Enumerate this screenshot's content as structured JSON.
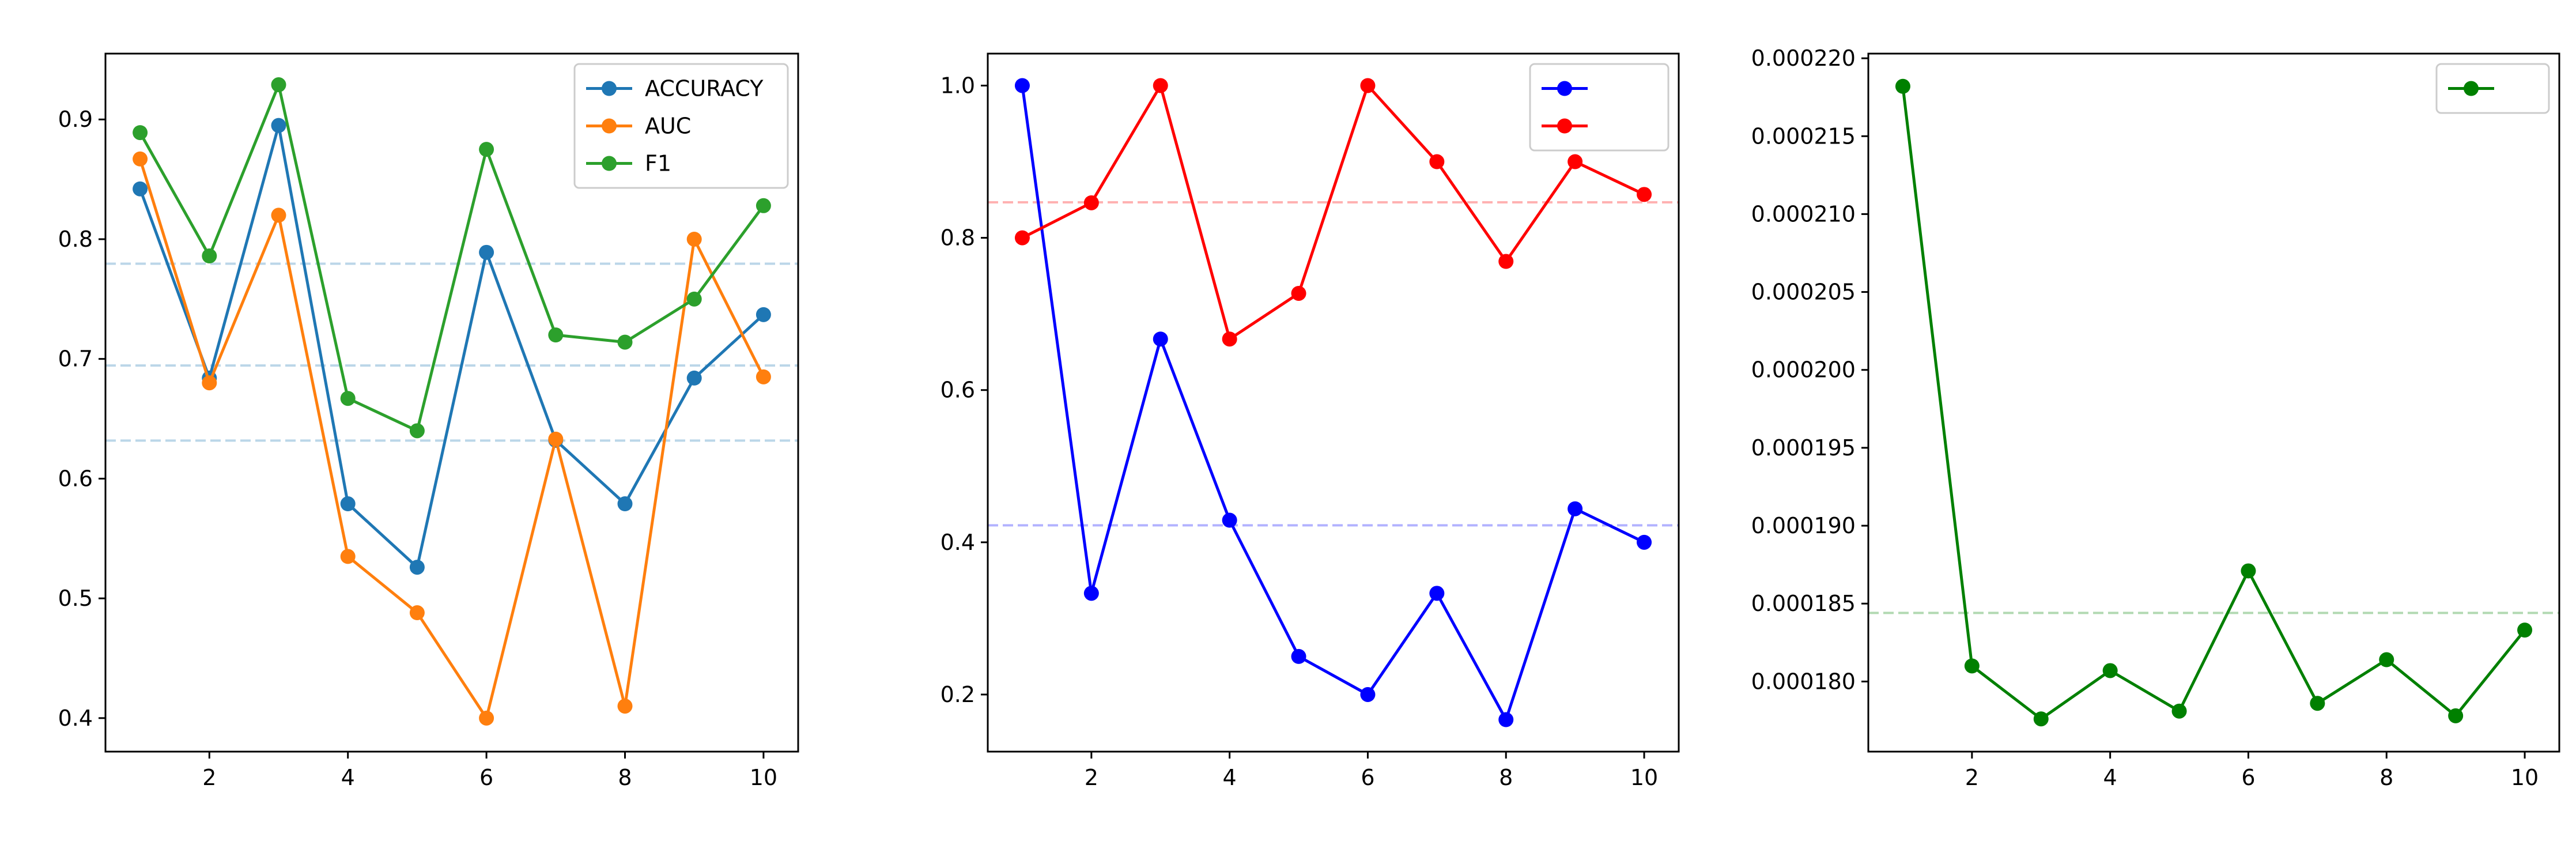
{
  "chart_data": [
    {
      "type": "line",
      "title": "",
      "xlabel": "",
      "ylabel": "",
      "x": [
        1,
        2,
        3,
        4,
        5,
        6,
        7,
        8,
        9,
        10
      ],
      "xlim": [
        0.5,
        10.5
      ],
      "ylim": [
        0.372,
        0.955
      ],
      "xticks": [
        2,
        4,
        6,
        8,
        10
      ],
      "yticks": [
        0.4,
        0.5,
        0.6,
        0.7,
        0.8,
        0.9
      ],
      "ytick_labels": [
        "0.4",
        "0.5",
        "0.6",
        "0.7",
        "0.8",
        "0.9"
      ],
      "grid": false,
      "legend_position": "upper right",
      "series": [
        {
          "name": "ACCURACY",
          "color": "#1f77b4",
          "values": [
            0.842,
            0.684,
            0.895,
            0.579,
            0.526,
            0.789,
            0.632,
            0.579,
            0.684,
            0.737
          ]
        },
        {
          "name": "AUC",
          "color": "#ff7f0e",
          "values": [
            0.867,
            0.68,
            0.82,
            0.535,
            0.488,
            0.4,
            0.633,
            0.41,
            0.8,
            0.685
          ]
        },
        {
          "name": "F1",
          "color": "#2ca02c",
          "values": [
            0.889,
            0.786,
            0.929,
            0.667,
            0.64,
            0.875,
            0.72,
            0.714,
            0.75,
            0.828
          ]
        }
      ],
      "reference_lines": [
        {
          "value": 0.7795,
          "color": "#1f77b4"
        },
        {
          "value": 0.6945,
          "color": "#1f77b4"
        },
        {
          "value": 0.6318,
          "color": "#1f77b4"
        }
      ]
    },
    {
      "type": "line",
      "title": "",
      "xlabel": "",
      "ylabel": "",
      "x": [
        1,
        2,
        3,
        4,
        5,
        6,
        7,
        8,
        9,
        10
      ],
      "xlim": [
        0.5,
        10.5
      ],
      "ylim": [
        0.125,
        1.042
      ],
      "xticks": [
        2,
        4,
        6,
        8,
        10
      ],
      "yticks": [
        0.2,
        0.4,
        0.6,
        0.8,
        1.0
      ],
      "ytick_labels": [
        "0.2",
        "0.4",
        "0.6",
        "0.8",
        "1.0"
      ],
      "grid": false,
      "legend_position": "upper right",
      "series": [
        {
          "name": "",
          "color": "#0000ff",
          "values": [
            1.0,
            0.333,
            0.667,
            0.429,
            0.25,
            0.2,
            0.333,
            0.167,
            0.444,
            0.4
          ]
        },
        {
          "name": "",
          "color": "#ff0000",
          "values": [
            0.8,
            0.846,
            1.0,
            0.667,
            0.727,
            1.0,
            0.9,
            0.769,
            0.9,
            0.857
          ]
        }
      ],
      "reference_lines": [
        {
          "value": 0.4223,
          "color": "#0000ff"
        },
        {
          "value": 0.8466,
          "color": "#ff0000"
        }
      ]
    },
    {
      "type": "line",
      "title": "",
      "xlabel": "",
      "ylabel": "",
      "x": [
        1,
        2,
        3,
        4,
        5,
        6,
        7,
        8,
        9,
        10
      ],
      "xlim": [
        0.5,
        10.5
      ],
      "ylim": [
        0.0001755,
        0.0002203
      ],
      "xticks": [
        2,
        4,
        6,
        8,
        10
      ],
      "yticks": [
        0.00018,
        0.000185,
        0.00019,
        0.000195,
        0.0002,
        0.000205,
        0.00021,
        0.000215,
        0.00022
      ],
      "ytick_labels": [
        "0.000180",
        "0.000185",
        "0.000190",
        "0.000195",
        "0.000200",
        "0.000205",
        "0.000210",
        "0.000215",
        "0.000220"
      ],
      "grid": false,
      "legend_position": "upper right",
      "series": [
        {
          "name": "",
          "color": "#008000",
          "values": [
            0.0002182,
            0.000181,
            0.0001776,
            0.0001807,
            0.0001781,
            0.0001871,
            0.0001786,
            0.0001814,
            0.0001778,
            0.0001833
          ]
        }
      ],
      "reference_lines": [
        {
          "value": 0.0001844,
          "color": "#008000"
        }
      ]
    }
  ]
}
